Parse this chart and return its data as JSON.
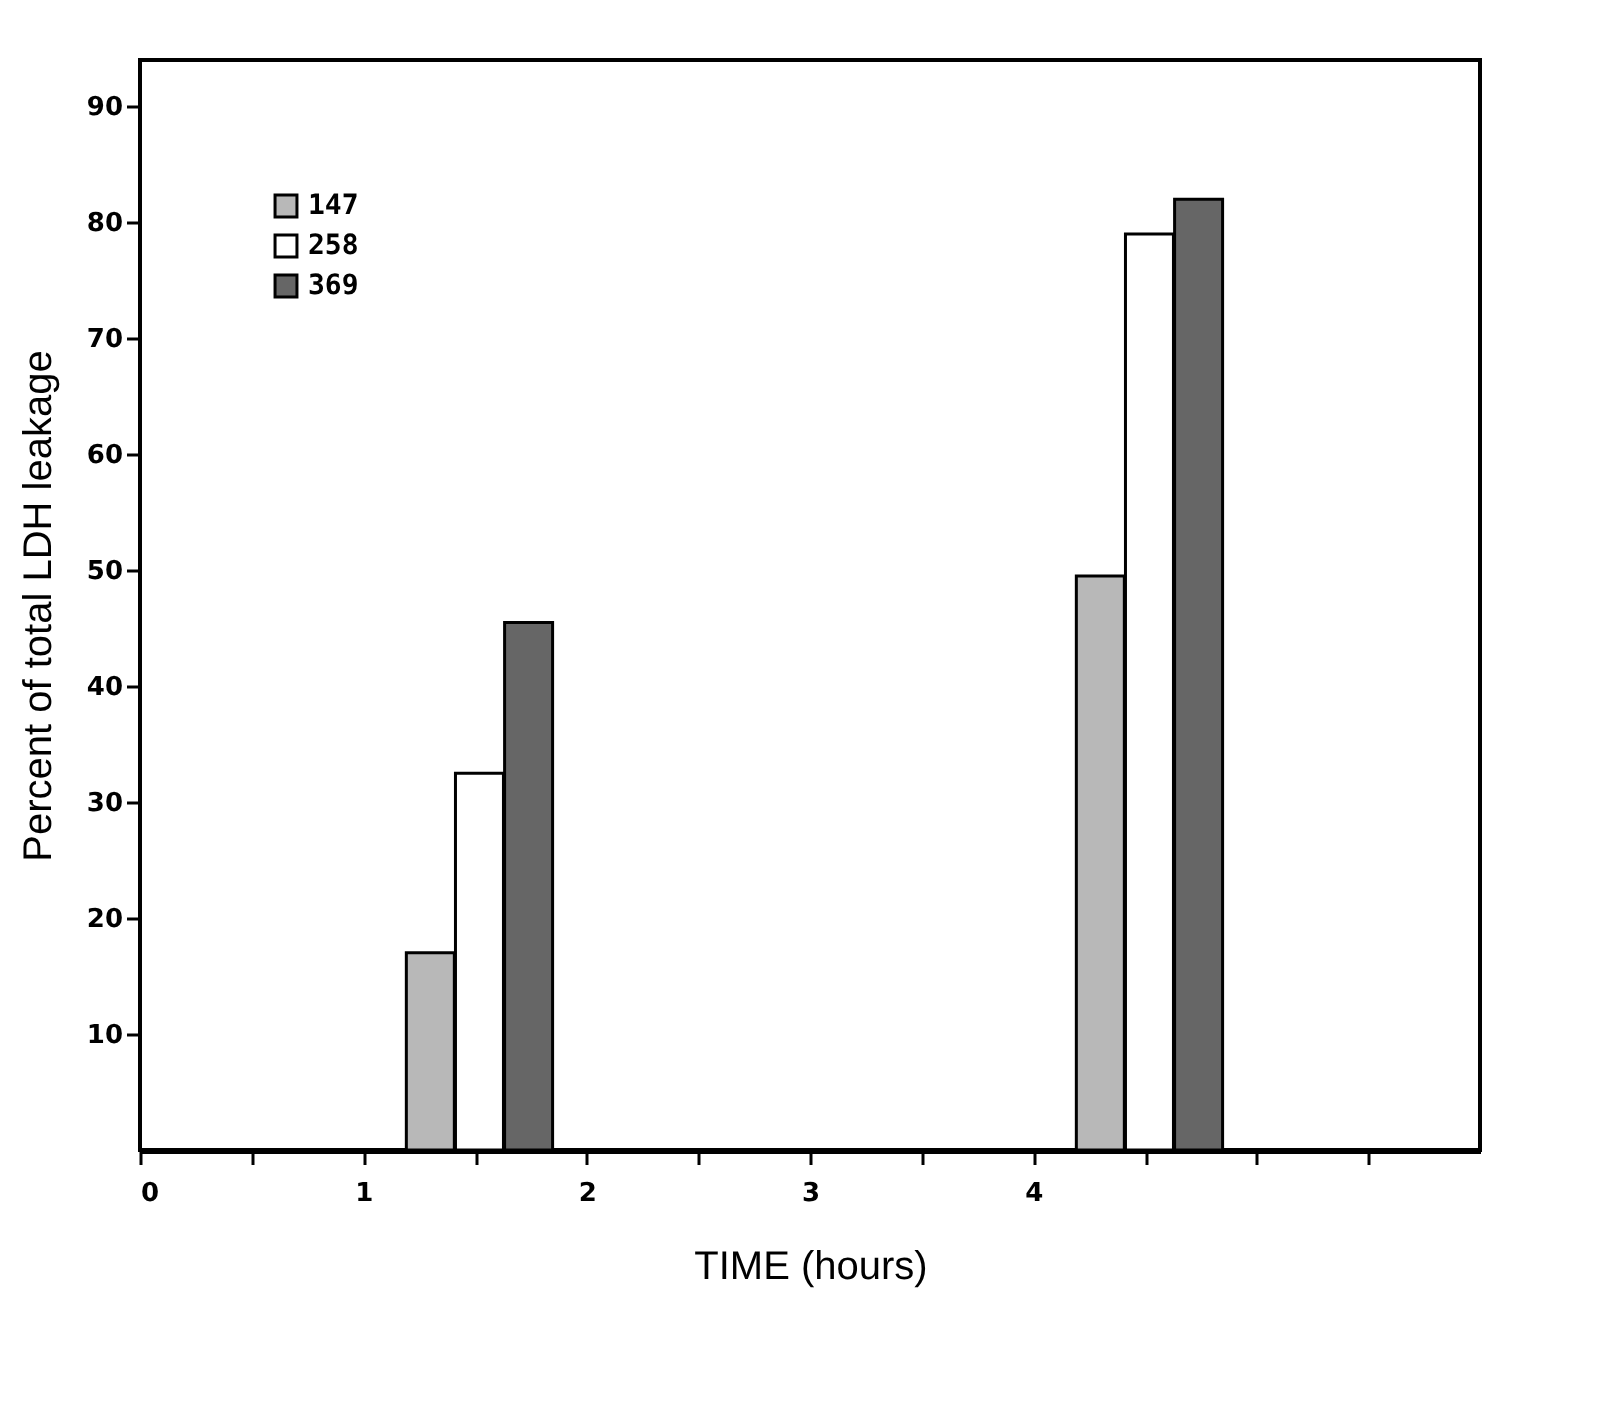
{
  "chart_data": {
    "type": "bar",
    "xlabel": "TIME (hours)",
    "ylabel": "Percent of total LDH leakage",
    "xlim": [
      0,
      6
    ],
    "xticks": [
      0,
      {
        "value": 0.5,
        "label": null
      },
      1,
      {
        "value": 1.5,
        "label": null
      },
      2,
      {
        "value": 2.5,
        "label": null
      },
      3,
      {
        "value": 3.5,
        "label": null
      },
      4,
      {
        "value": 4.5,
        "label": null
      },
      {
        "value": 5,
        "label": null
      },
      {
        "value": 5.5,
        "label": null
      }
    ],
    "ylim": [
      0,
      94
    ],
    "yticks": [
      10,
      20,
      30,
      40,
      50,
      60,
      70,
      80,
      90
    ],
    "series": [
      {
        "name": "147",
        "color": "#b8b8b8",
        "x": [
          1.3,
          4.3
        ],
        "values": [
          17,
          49.5
        ]
      },
      {
        "name": "258",
        "color": "#ffffff",
        "x": [
          1.52,
          4.52
        ],
        "values": [
          32.5,
          79
        ]
      },
      {
        "name": "369",
        "color": "#666666",
        "x": [
          1.74,
          4.74
        ],
        "values": [
          45.5,
          82
        ]
      }
    ],
    "legend": "top left",
    "grid": false
  }
}
